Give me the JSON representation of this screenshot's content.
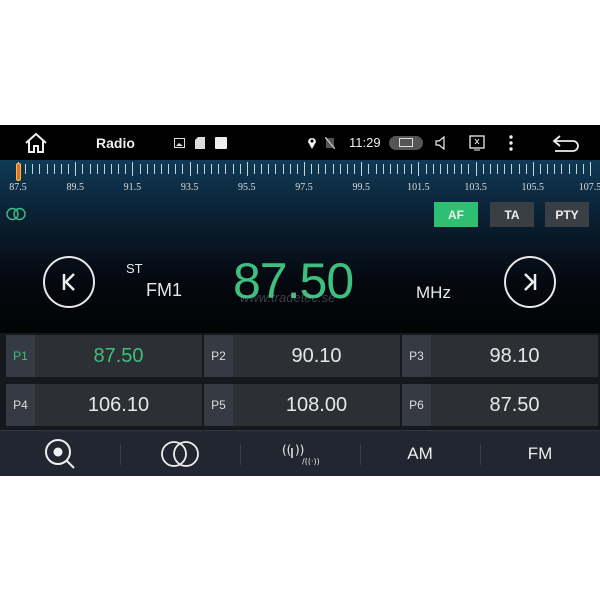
{
  "status_bar": {
    "title": "Radio",
    "time": "11:29",
    "icons": [
      "home-icon",
      "image-icon",
      "sd-card-icon",
      "notification-icon",
      "location-icon",
      "no-signal-icon",
      "camera-icon",
      "volume-icon",
      "close-screen-icon",
      "more-icon",
      "back-icon"
    ]
  },
  "tuner": {
    "scale_labels": [
      "87.5",
      "89.5",
      "91.5",
      "93.5",
      "95.5",
      "97.5",
      "99.5",
      "101.5",
      "103.5",
      "105.5",
      "107.5"
    ],
    "min": 87.5,
    "max": 107.5,
    "current": 87.5,
    "af_label": "AF",
    "ta_label": "TA",
    "pty_label": "PTY",
    "af_active": true,
    "stereo": "ST",
    "band": "FM1",
    "frequency": "87.50",
    "unit": "MHz",
    "watermark": "www.tradetec.se"
  },
  "presets": [
    {
      "label": "P1",
      "value": "87.50",
      "active": true
    },
    {
      "label": "P2",
      "value": "90.10"
    },
    {
      "label": "P3",
      "value": "98.10"
    },
    {
      "label": "P4",
      "value": "106.10"
    },
    {
      "label": "P5",
      "value": "108.00"
    },
    {
      "label": "P6",
      "value": "87.50"
    }
  ],
  "bottom": {
    "am_label": "AM",
    "fm_label": "FM"
  },
  "colors": {
    "accent": "#3dbf7f",
    "af_bg": "#2fbf72"
  }
}
